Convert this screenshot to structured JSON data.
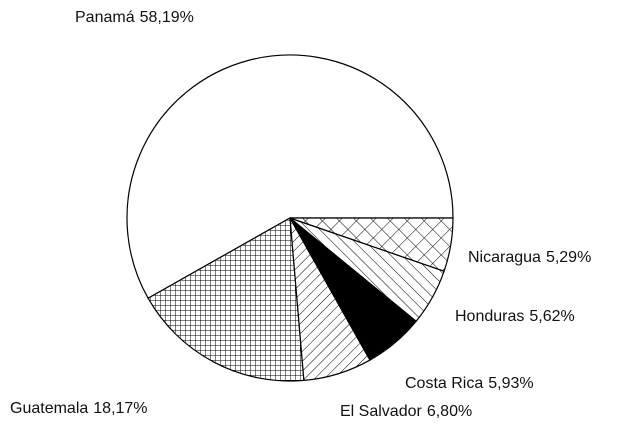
{
  "chart_data": {
    "type": "pie",
    "categories": [
      "Panamá",
      "Guatemala",
      "El Salvador",
      "Costa Rica",
      "Honduras",
      "Nicaragua"
    ],
    "values": [
      58.19,
      18.17,
      6.8,
      5.93,
      5.62,
      5.29
    ],
    "value_labels": [
      "58,19%",
      "18,17%",
      "6,80%",
      "5,93%",
      "5,62%",
      "5,29%"
    ],
    "patterns": [
      "none",
      "grid",
      "diagonal",
      "solid",
      "backdiagonal",
      "crosshatch"
    ],
    "color": "#000000"
  }
}
